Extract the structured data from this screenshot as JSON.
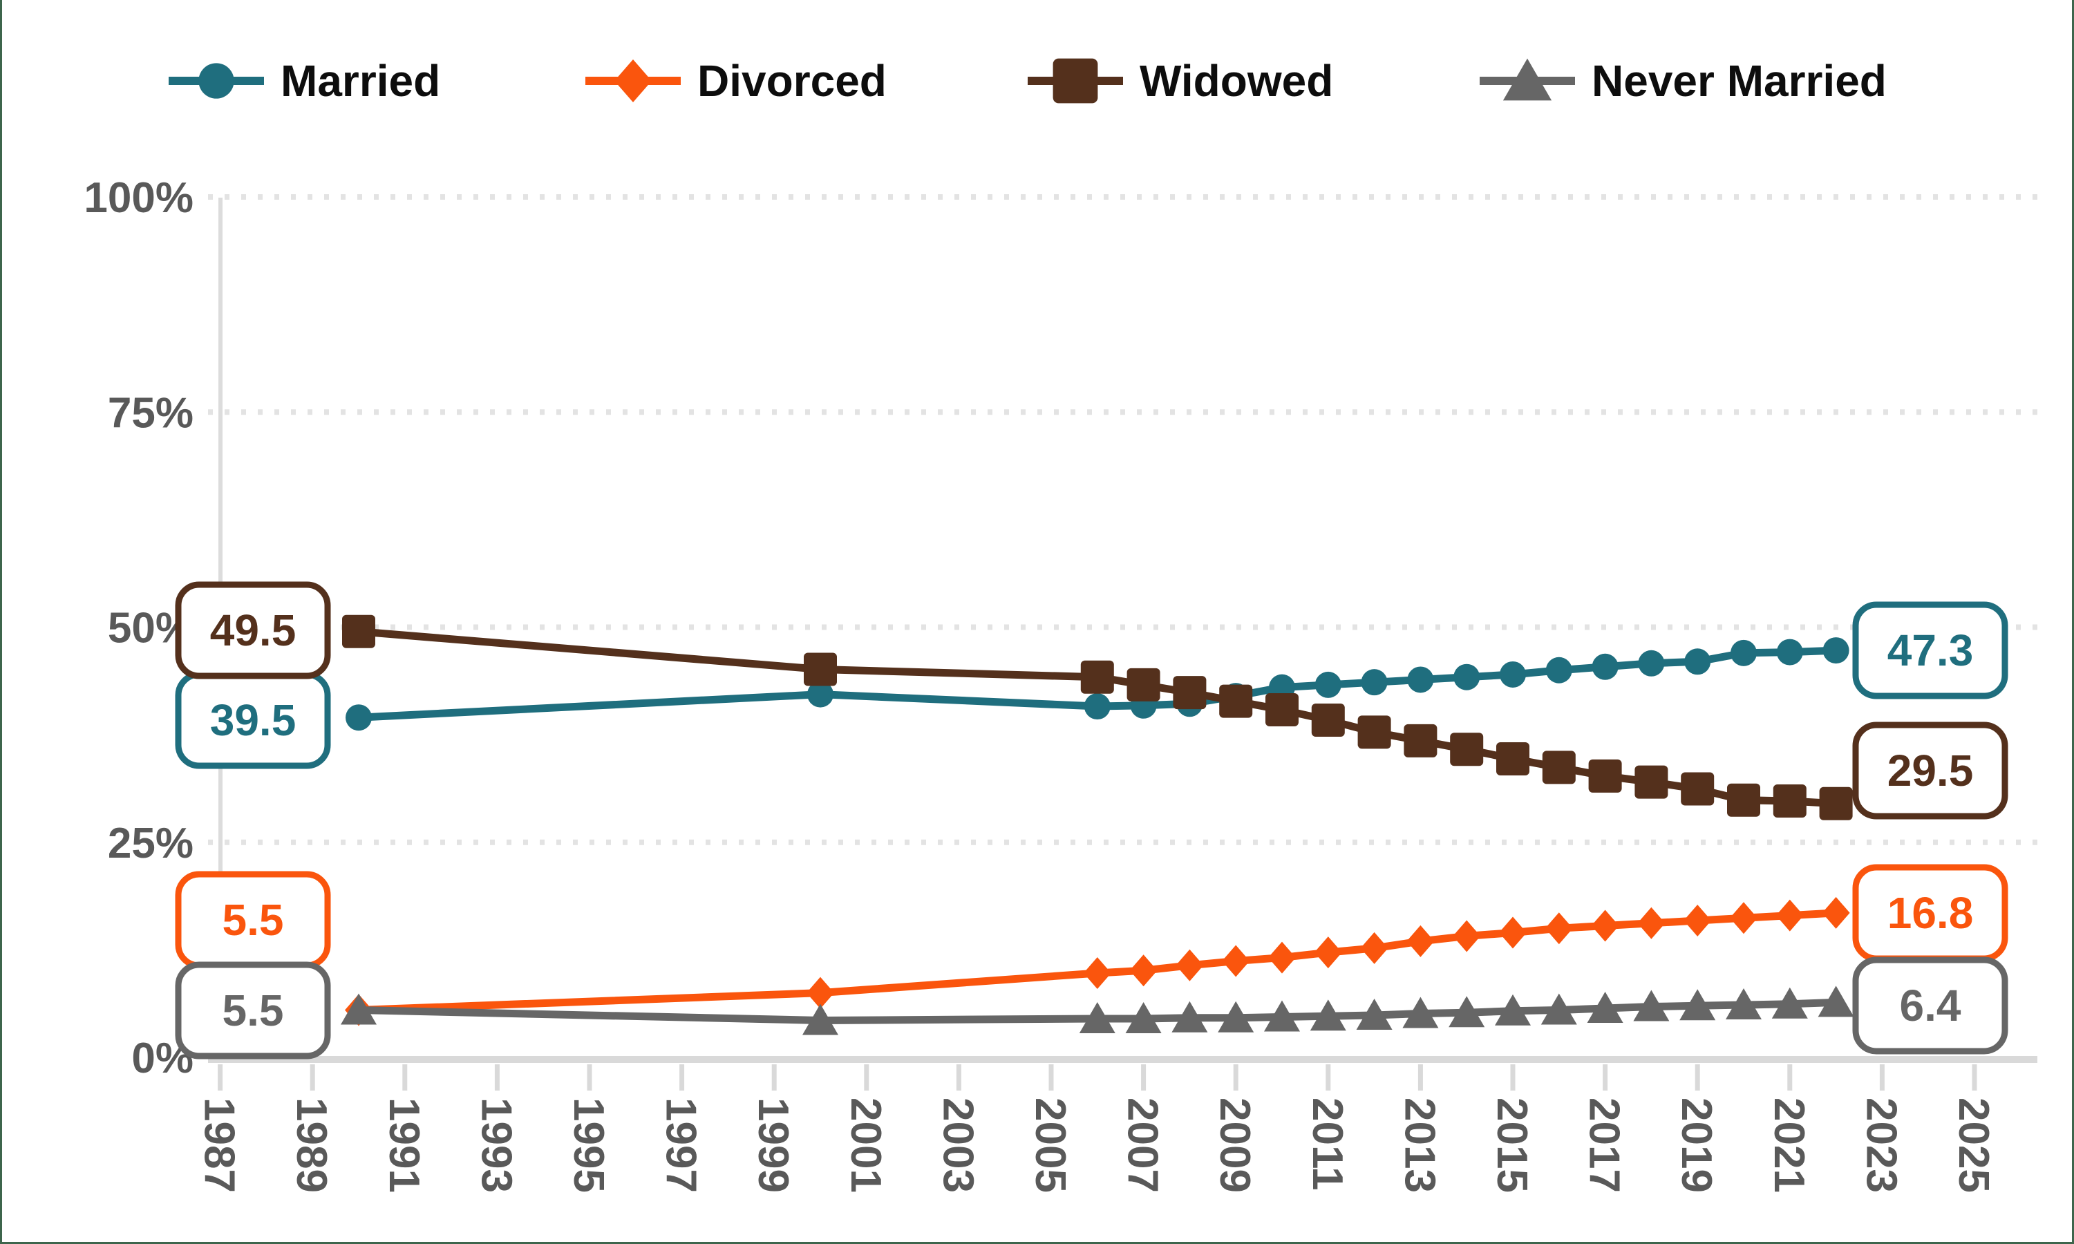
{
  "frame": {
    "border_color": "#3e654c",
    "background": "#ffffff"
  },
  "chart_data": {
    "type": "line",
    "title": "",
    "xlabel": "",
    "ylabel": "",
    "x": [
      1990,
      2000,
      2006,
      2007,
      2008,
      2009,
      2010,
      2011,
      2012,
      2013,
      2014,
      2015,
      2016,
      2017,
      2018,
      2019,
      2020,
      2021,
      2022
    ],
    "x_axis": {
      "ticks": [
        1987,
        1989,
        1991,
        1993,
        1995,
        1997,
        1999,
        2001,
        2003,
        2005,
        2007,
        2009,
        2011,
        2013,
        2015,
        2017,
        2019,
        2021,
        2023,
        2025
      ],
      "label_rotation_deg": 90,
      "range": [
        1987,
        2025
      ]
    },
    "y_axis": {
      "ticks": [
        "0%",
        "25%",
        "50%",
        "75%",
        "100%"
      ],
      "tick_values": [
        0,
        25,
        50,
        75,
        100
      ],
      "range": [
        0,
        100
      ],
      "grid": "dotted-horizontal"
    },
    "legend_position": "top",
    "series": [
      {
        "name": "Married",
        "color": "#1f6e7e",
        "marker": "circle",
        "left_label": "39.5",
        "right_label": "47.3",
        "values": [
          39.5,
          42.2,
          40.8,
          40.9,
          41.1,
          42.0,
          43.0,
          43.3,
          43.6,
          43.9,
          44.2,
          44.5,
          45.0,
          45.4,
          45.8,
          46.0,
          47.0,
          47.1,
          47.3
        ]
      },
      {
        "name": "Divorced",
        "color": "#fa550d",
        "marker": "diamond",
        "left_label": "5.5",
        "right_label": "16.8",
        "values": [
          5.5,
          7.5,
          9.8,
          10.1,
          10.7,
          11.2,
          11.6,
          12.2,
          12.7,
          13.5,
          14.1,
          14.5,
          15.0,
          15.3,
          15.6,
          15.9,
          16.2,
          16.5,
          16.8
        ]
      },
      {
        "name": "Widowed",
        "color": "#54301c",
        "marker": "square",
        "left_label": "49.5",
        "right_label": "29.5",
        "values": [
          49.5,
          45.1,
          44.2,
          43.3,
          42.4,
          41.4,
          40.4,
          39.2,
          37.8,
          36.8,
          35.8,
          34.7,
          33.7,
          32.7,
          32.0,
          31.2,
          29.9,
          29.8,
          29.5
        ]
      },
      {
        "name": "Never Married",
        "color": "#666666",
        "marker": "triangle",
        "left_label": "5.5",
        "right_label": "6.4",
        "values": [
          5.5,
          4.3,
          4.5,
          4.5,
          4.6,
          4.6,
          4.7,
          4.8,
          4.9,
          5.1,
          5.2,
          5.4,
          5.5,
          5.7,
          5.9,
          6.0,
          6.1,
          6.2,
          6.4
        ]
      }
    ]
  }
}
